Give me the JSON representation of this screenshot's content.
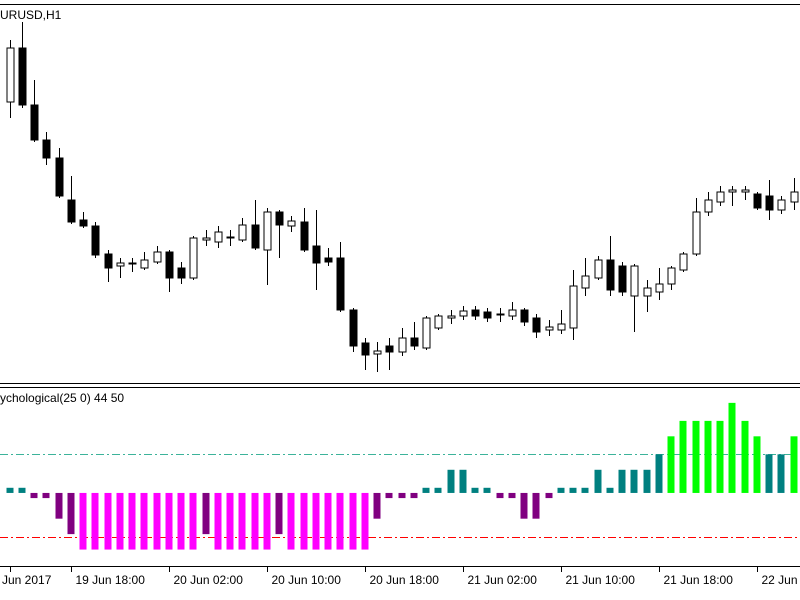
{
  "chart_data": [
    {
      "type": "candlestick",
      "title": "URUSD,H1",
      "ylim": [
        1.1123,
        1.12
      ],
      "up_color": "#ffffff",
      "down_color": "#000000",
      "open": [
        1.11796,
        1.11904,
        1.1179,
        1.1172,
        1.11684,
        1.116,
        1.1156,
        1.11548,
        1.11492,
        1.11468,
        1.11472,
        1.11464,
        1.11476,
        1.11496,
        1.11464,
        1.11444,
        1.1152,
        1.11516,
        1.11524,
        1.1152,
        1.1155,
        1.115,
        1.11576,
        1.11548,
        1.11556,
        1.11508,
        1.11484,
        1.11484,
        1.1138,
        1.11314,
        1.11292,
        1.11308,
        1.11296,
        1.11324,
        1.11304,
        1.11344,
        1.11364,
        1.11368,
        1.1138,
        1.11376,
        1.1137,
        1.11368,
        1.1138,
        1.11364,
        1.1134,
        1.1134,
        1.11344,
        1.11424,
        1.11444,
        1.1148,
        1.11468,
        1.11408,
        1.11408,
        1.11416,
        1.11432,
        1.1146,
        1.11492,
        1.11576,
        1.11596,
        1.11616,
        1.11616,
        1.11612,
        1.11608,
        1.1158,
        1.11596
      ],
      "high": [
        1.1192,
        1.11956,
        1.1184,
        1.11736,
        1.11704,
        1.11648,
        1.11576,
        1.11556,
        1.115,
        1.11484,
        1.11484,
        1.11496,
        1.11508,
        1.115,
        1.11476,
        1.11528,
        1.1154,
        1.11548,
        1.1154,
        1.11564,
        1.116,
        1.11584,
        1.1158,
        1.11568,
        1.11584,
        1.1158,
        1.11504,
        1.11516,
        1.11384,
        1.11324,
        1.11316,
        1.11324,
        1.11344,
        1.11356,
        1.11368,
        1.11372,
        1.1138,
        1.11388,
        1.11388,
        1.11384,
        1.11384,
        1.11396,
        1.11384,
        1.11372,
        1.1136,
        1.1138,
        1.1146,
        1.11484,
        1.11488,
        1.11528,
        1.11476,
        1.11472,
        1.1144,
        1.11464,
        1.11468,
        1.11496,
        1.11604,
        1.11616,
        1.11628,
        1.11628,
        1.11628,
        1.11616,
        1.1164,
        1.11608,
        1.11644
      ],
      "low": [
        1.11764,
        1.11784,
        1.11716,
        1.1167,
        1.11604,
        1.11552,
        1.11544,
        1.11484,
        1.11436,
        1.11444,
        1.11456,
        1.1146,
        1.11472,
        1.11416,
        1.11432,
        1.1144,
        1.11508,
        1.11504,
        1.11508,
        1.11516,
        1.115,
        1.1143,
        1.11484,
        1.11536,
        1.11496,
        1.1142,
        1.11468,
        1.11376,
        1.11296,
        1.1126,
        1.11256,
        1.1126,
        1.11288,
        1.113,
        1.113,
        1.1134,
        1.11352,
        1.1136,
        1.1136,
        1.11356,
        1.11356,
        1.1136,
        1.11348,
        1.11324,
        1.11328,
        1.11332,
        1.1132,
        1.11408,
        1.1144,
        1.11408,
        1.11408,
        1.11336,
        1.11376,
        1.114,
        1.1142,
        1.11456,
        1.11488,
        1.11568,
        1.11588,
        1.11588,
        1.116,
        1.1158,
        1.1156,
        1.11572,
        1.1158
      ],
      "close": [
        1.11904,
        1.1179,
        1.1172,
        1.11684,
        1.11608,
        1.11556,
        1.11548,
        1.1149,
        1.11464,
        1.11474,
        1.11474,
        1.1148,
        1.11496,
        1.11444,
        1.11444,
        1.11524,
        1.11524,
        1.11536,
        1.11526,
        1.1155,
        1.11504,
        1.11576,
        1.1155,
        1.11558,
        1.115,
        1.11474,
        1.11476,
        1.1138,
        1.11308,
        1.1129,
        1.11298,
        1.11296,
        1.11324,
        1.11308,
        1.11364,
        1.11368,
        1.11368,
        1.11378,
        1.11368,
        1.11364,
        1.11372,
        1.1138,
        1.11356,
        1.11336,
        1.11346,
        1.11352,
        1.11428,
        1.11448,
        1.1148,
        1.1142,
        1.11416,
        1.11468,
        1.11424,
        1.11432,
        1.11464,
        1.11492,
        1.11576,
        1.116,
        1.11616,
        1.1162,
        1.1162,
        1.11584,
        1.1158,
        1.116,
        1.11616
      ]
    },
    {
      "type": "bar",
      "title": "ychological(25 0) 44 50",
      "ylim": [
        22,
        90
      ],
      "baseline": 50,
      "levels": [
        65,
        33
      ],
      "level_colors": [
        "#3cb39a",
        "#ff0000"
      ],
      "colors": {
        "above_upper": "#00ff00",
        "above": "#008080",
        "below": "#800080",
        "below_lower": "#ff00ff"
      },
      "categories": [
        "Jun 2017",
        null,
        null,
        null,
        null,
        "19 Jun 18:00",
        null,
        null,
        null,
        null,
        null,
        null,
        null,
        "20 Jun 02:00",
        null,
        null,
        null,
        null,
        null,
        null,
        null,
        "20 Jun 10:00",
        null,
        null,
        null,
        null,
        null,
        null,
        null,
        "20 Jun 18:00",
        null,
        null,
        null,
        null,
        null,
        null,
        null,
        "21 Jun 02:00",
        null,
        null,
        null,
        null,
        null,
        null,
        null,
        "21 Jun 10:00",
        null,
        null,
        null,
        null,
        null,
        null,
        null,
        "21 Jun 18:00",
        null,
        null,
        null,
        null,
        null,
        null,
        null,
        "22 Jun",
        null,
        null,
        null
      ],
      "values": [
        52,
        52,
        48,
        48,
        40,
        34,
        28,
        28,
        28,
        28,
        28,
        28,
        28,
        28,
        28,
        28,
        34,
        28,
        28,
        28,
        28,
        28,
        34,
        28,
        28,
        28,
        28,
        28,
        28,
        28,
        40,
        48,
        48,
        48,
        52,
        52,
        59,
        59,
        52,
        52,
        48,
        48,
        40,
        40,
        48,
        52,
        52,
        52,
        59,
        52,
        59,
        59,
        59,
        65,
        72,
        78,
        78,
        78,
        78,
        85,
        78,
        72,
        65,
        65,
        72
      ]
    }
  ]
}
